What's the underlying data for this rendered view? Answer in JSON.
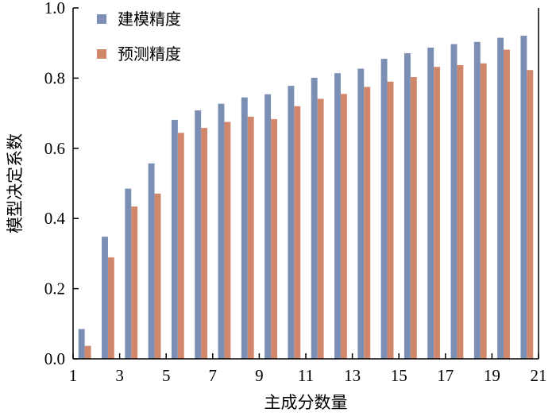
{
  "chart_data": {
    "type": "bar",
    "categories": [
      1,
      2,
      3,
      4,
      5,
      6,
      7,
      8,
      9,
      10,
      11,
      12,
      13,
      14,
      15,
      16,
      17,
      18,
      19,
      20
    ],
    "series": [
      {
        "name": "建模精度",
        "color": "#7b8fb5",
        "values": [
          0.085,
          0.348,
          0.485,
          0.557,
          0.681,
          0.708,
          0.727,
          0.745,
          0.754,
          0.778,
          0.801,
          0.814,
          0.827,
          0.855,
          0.871,
          0.887,
          0.897,
          0.903,
          0.915,
          0.921
        ]
      },
      {
        "name": "预测精度",
        "color": "#d0876b",
        "values": [
          0.037,
          0.289,
          0.434,
          0.471,
          0.644,
          0.658,
          0.675,
          0.69,
          0.683,
          0.72,
          0.741,
          0.755,
          0.775,
          0.79,
          0.803,
          0.832,
          0.837,
          0.842,
          0.881,
          0.823
        ]
      }
    ],
    "xlabel": "主成分数量",
    "ylabel": "模型决定系数",
    "xlim": [
      1,
      21
    ],
    "xticks": [
      "1",
      "3",
      "5",
      "7",
      "9",
      "11",
      "13",
      "15",
      "17",
      "19",
      "21"
    ],
    "ylim": [
      0.0,
      1.0
    ],
    "yticks": [
      "0.0",
      "0.2",
      "0.4",
      "0.6",
      "0.8",
      "1.0"
    ],
    "grid": false,
    "legend_position": "top-left"
  }
}
